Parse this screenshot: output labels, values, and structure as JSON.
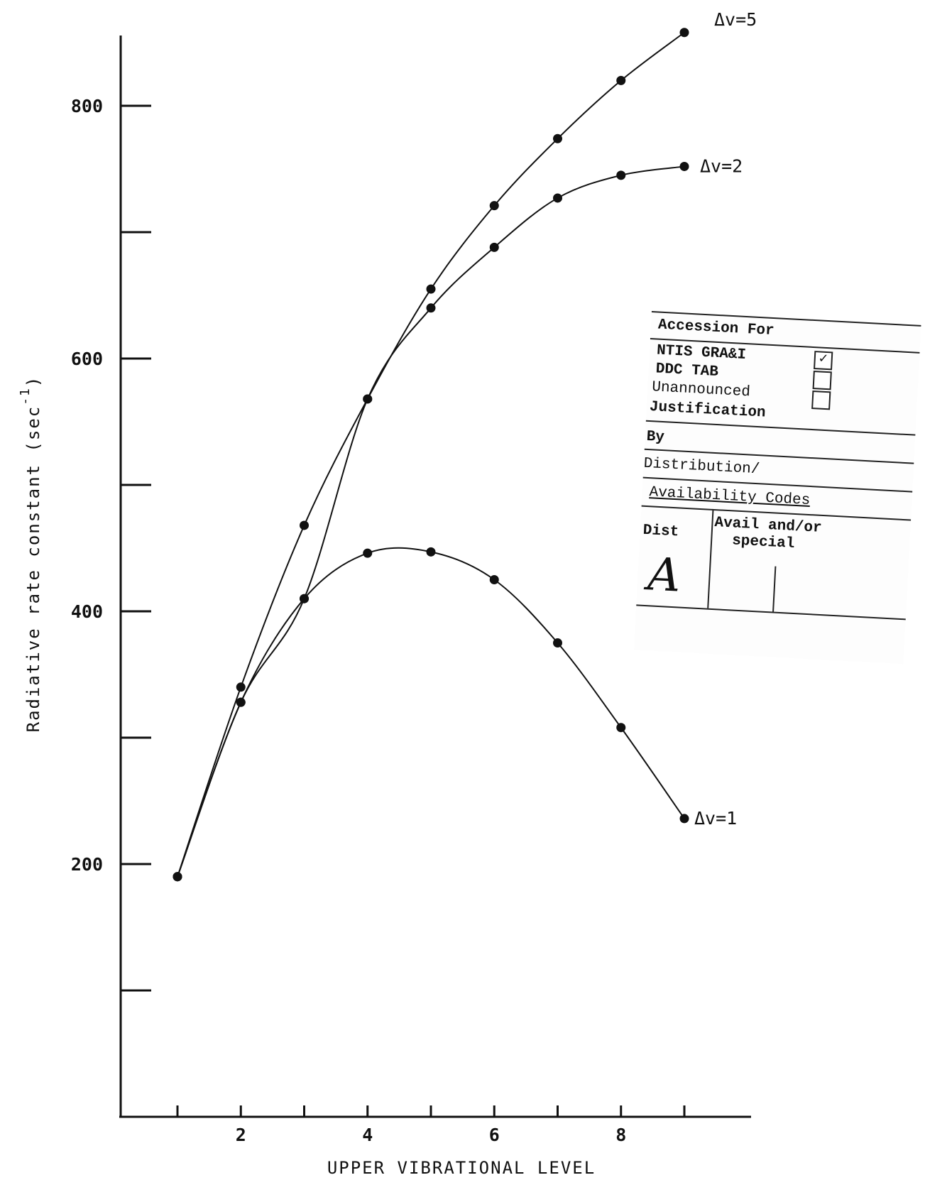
{
  "chart_data": {
    "type": "line",
    "title": "",
    "xlabel": "UPPER VIBRATIONAL LEVEL",
    "ylabel": "Radiative rate constant (sec",
    "ylabel_superscript": "-1",
    "ylabel_close": ")",
    "xlim": [
      0,
      10
    ],
    "ylim": [
      0,
      900
    ],
    "x_ticks": [
      1,
      2,
      3,
      4,
      5,
      6,
      7,
      8,
      9
    ],
    "x_tick_labels": [
      {
        "value": 2,
        "label": "2"
      },
      {
        "value": 4,
        "label": "4"
      },
      {
        "value": 6,
        "label": "6"
      },
      {
        "value": 8,
        "label": "8"
      }
    ],
    "y_ticks": [
      100,
      200,
      300,
      400,
      500,
      600,
      700,
      800
    ],
    "y_tick_labels": [
      {
        "value": 200,
        "label": "200"
      },
      {
        "value": 400,
        "label": "400"
      },
      {
        "value": 600,
        "label": "600"
      },
      {
        "value": 800,
        "label": "800"
      }
    ],
    "grid": false,
    "series": [
      {
        "name": "Δv=5",
        "x": [
          1,
          2,
          3,
          4,
          5,
          6,
          7,
          8,
          9
        ],
        "y": [
          190,
          340,
          468,
          568,
          655,
          721,
          774,
          820,
          858
        ]
      },
      {
        "name": "Δv=2",
        "x": [
          1,
          2,
          3,
          4,
          5,
          6,
          7,
          8,
          9
        ],
        "y": [
          190,
          328,
          410,
          568,
          640,
          688,
          727,
          745,
          752
        ]
      },
      {
        "name": "Δv=1",
        "x": [
          1,
          2,
          3,
          4,
          5,
          6,
          7,
          8,
          9
        ],
        "y": [
          190,
          328,
          410,
          446,
          447,
          425,
          375,
          308,
          236
        ]
      }
    ]
  },
  "stamp": {
    "header": "Accession For",
    "items": [
      {
        "label": "NTIS  GRA&I",
        "mark": "✓"
      },
      {
        "label": "DDC TAB",
        "mark": ""
      },
      {
        "label": "Unannounced",
        "mark": ""
      }
    ],
    "justification": "Justification",
    "by": "By",
    "distribution": "Distribution/",
    "availability": "Availability Codes",
    "dist": "Dist",
    "avail_special_1": "Avail and/or",
    "avail_special_2": "special",
    "dist_mark": "A"
  }
}
